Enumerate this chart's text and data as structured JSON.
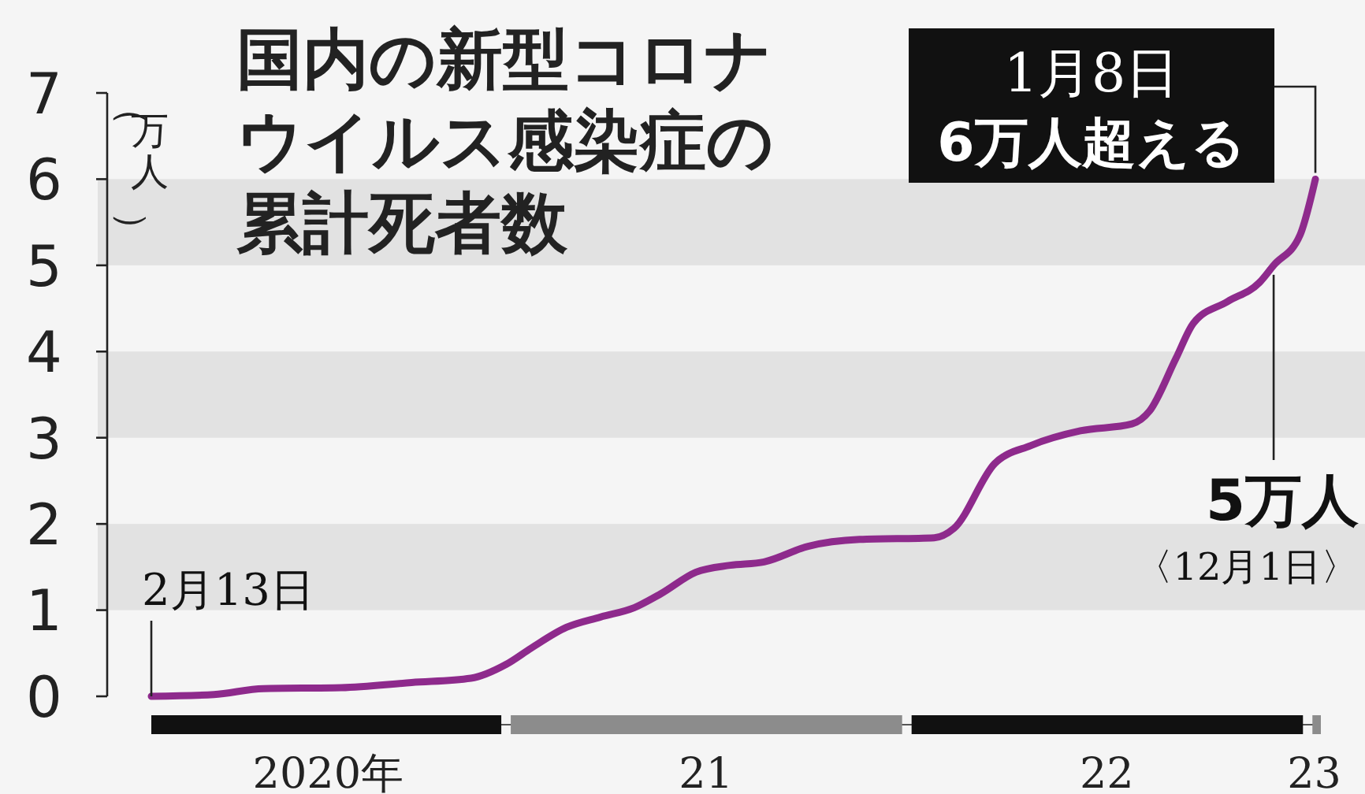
{
  "chart_data": {
    "type": "line",
    "title": "国内の新型コロナウイルス感染症の累計死者数",
    "ylabel": "（万人）",
    "x": [
      "2020-02-13",
      "2020-04-10",
      "2020-05-25",
      "2020-08-04",
      "2020-10-07",
      "2020-11-30",
      "2021-01-01",
      "2021-01-24",
      "2021-02-25",
      "2021-03-28",
      "2021-04-28",
      "2021-05-22",
      "2021-06-23",
      "2021-07-24",
      "2021-08-24",
      "2021-10-03",
      "2021-11-19",
      "2022-01-26",
      "2022-02-13",
      "2022-03-22",
      "2022-04-24",
      "2022-06-08",
      "2022-07-25",
      "2022-08-10",
      "2022-09-03",
      "2022-09-19",
      "2022-10-20",
      "2022-11-18",
      "2022-12-01",
      "2022-12-25",
      "2023-01-08"
    ],
    "series": [
      {
        "color": "#8e2a8c",
        "values": [
          0,
          0.02,
          0.09,
          0.1,
          0.16,
          0.21,
          0.37,
          0.56,
          0.8,
          0.92,
          1.03,
          1.19,
          1.44,
          1.52,
          1.56,
          1.74,
          1.82,
          1.84,
          1.95,
          2.7,
          2.91,
          3.08,
          3.16,
          3.31,
          3.92,
          4.33,
          4.58,
          4.8,
          5,
          5.35,
          6
        ]
      }
    ],
    "xlim": [
      "2020-02-13",
      "2023-01-13"
    ],
    "xticks": [
      {
        "value": "2020-07-23",
        "label": "2020年"
      },
      {
        "value": "2021-07-02",
        "label": "21"
      },
      {
        "value": "2022-07-02",
        "label": "22"
      },
      {
        "value": "2023-01-07",
        "label": "23"
      }
    ],
    "ylim": [
      0,
      7
    ],
    "yticks": [
      0,
      1,
      2,
      3,
      4,
      5,
      6,
      7
    ],
    "bands": [
      {
        "axis": "y",
        "from": 1,
        "to": 2,
        "color": "#e2e2e2"
      },
      {
        "axis": "y",
        "from": 3,
        "to": 4,
        "color": "#e2e2e2"
      },
      {
        "axis": "y",
        "from": 5,
        "to": 6,
        "color": "#e2e2e2"
      }
    ],
    "annotations": [
      {
        "text": "2月13日",
        "x": "2020-02-13",
        "y": 0
      },
      {
        "text": "1月8日",
        "x": "2023-01-08",
        "y": 6
      },
      {
        "text": "6万人超える",
        "x": "2023-01-08",
        "y": 6
      },
      {
        "text": "5万人",
        "x": "2022-12-01",
        "y": 5
      },
      "〈12月1日〉"
    ],
    "grid": false,
    "marker": "none",
    "line_style": "solid"
  }
}
